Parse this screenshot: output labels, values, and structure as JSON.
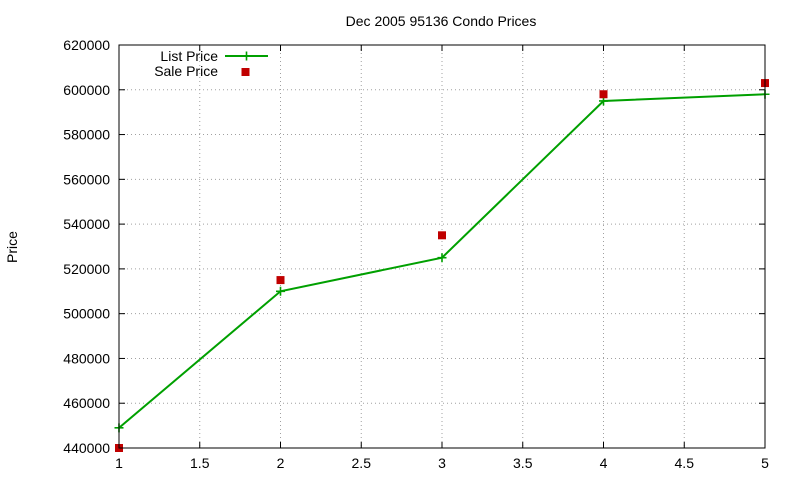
{
  "chart_data": {
    "type": "line",
    "title": "Dec 2005 95136 Condo Prices",
    "xlabel": "",
    "ylabel": "Price",
    "xlim": [
      1,
      5
    ],
    "ylim": [
      440000,
      620000
    ],
    "grid": true,
    "legend_position": "top-left",
    "x_ticks": [
      "1",
      "1.5",
      "2",
      "2.5",
      "3",
      "3.5",
      "4",
      "4.5",
      "5"
    ],
    "y_ticks": [
      "440000",
      "460000",
      "480000",
      "500000",
      "520000",
      "540000",
      "560000",
      "580000",
      "600000",
      "620000"
    ],
    "series": [
      {
        "name": "List Price",
        "style": "linespoints",
        "marker": "plus",
        "color": "#00a000",
        "x": [
          1,
          2,
          3,
          4,
          5
        ],
        "values": [
          449000,
          510000,
          525000,
          595000,
          598000
        ]
      },
      {
        "name": "Sale Price",
        "style": "points",
        "marker": "square",
        "color": "#c00000",
        "x": [
          1,
          2,
          3,
          4,
          5
        ],
        "values": [
          440000,
          515000,
          535000,
          598000,
          603000
        ]
      }
    ]
  }
}
